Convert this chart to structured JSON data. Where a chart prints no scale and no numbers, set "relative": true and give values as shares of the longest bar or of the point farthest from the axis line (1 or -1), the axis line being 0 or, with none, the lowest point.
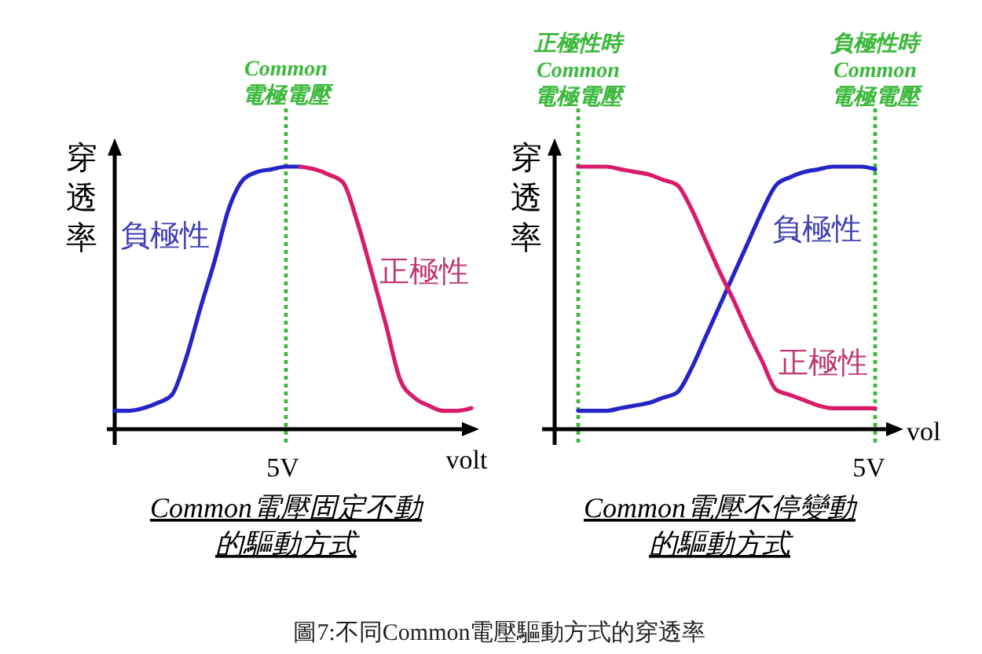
{
  "chart_data": [
    {
      "type": "line",
      "title": "Common電壓固定不動的驅動方式",
      "xlabel": "volt",
      "ylabel": "穿透率",
      "relative": true,
      "categories": [
        null,
        null,
        null,
        null,
        null,
        null,
        null,
        null,
        null,
        null,
        null,
        null,
        null,
        null,
        null,
        null,
        null,
        null,
        null,
        null,
        null,
        null,
        null,
        null,
        null,
        null
      ],
      "series": [
        {
          "name": "負極性",
          "color": "#2424c8",
          "values": [
            0.07,
            0.07,
            0.08,
            0.1,
            0.13,
            0.27,
            0.46,
            0.64,
            0.84,
            0.95,
            0.98,
            0.99,
            1,
            1,
            null,
            null,
            null,
            null,
            null,
            null,
            null,
            null,
            null,
            null,
            null,
            null
          ]
        },
        {
          "name": "正極性",
          "color": "#d81b6a",
          "values": [
            null,
            null,
            null,
            null,
            null,
            null,
            null,
            null,
            null,
            null,
            null,
            null,
            null,
            1,
            0.99,
            0.97,
            0.94,
            0.79,
            0.6,
            0.4,
            0.19,
            0.12,
            0.09,
            0.07,
            0.07,
            0.08
          ]
        }
      ],
      "annotations": [
        "Common電極電壓",
        "5V",
        "圖7:不同Common電壓驅動方式的穿透率"
      ]
    },
    {
      "type": "line",
      "title": "Common電壓不停變動的驅動方式",
      "xlabel": "vol",
      "ylabel": "穿透率",
      "relative": true,
      "categories": [
        null,
        null,
        null,
        null,
        null,
        null,
        null,
        null,
        null,
        null,
        null,
        null,
        null,
        null,
        null,
        null,
        null,
        null,
        null,
        null,
        null,
        null
      ],
      "series": [
        {
          "name": "負極性",
          "color": "#2424c8",
          "values": [
            0.07,
            0.07,
            0.07,
            0.08,
            0.09,
            0.1,
            0.12,
            0.14,
            0.23,
            0.35,
            0.47,
            0.59,
            0.71,
            0.83,
            0.93,
            0.96,
            0.98,
            0.99,
            1,
            1,
            1,
            0.99
          ]
        },
        {
          "name": "正極性",
          "color": "#d81b6a",
          "values": [
            1,
            1,
            1,
            0.99,
            0.98,
            0.97,
            0.95,
            0.93,
            0.84,
            0.72,
            0.6,
            0.49,
            0.37,
            0.26,
            0.15,
            0.13,
            0.11,
            0.09,
            0.08,
            0.08,
            0.08,
            0.08
          ]
        }
      ],
      "annotations": [
        "正極性時Common電極電壓",
        "負極性時Common電極電壓",
        "5V"
      ]
    }
  ]
}
